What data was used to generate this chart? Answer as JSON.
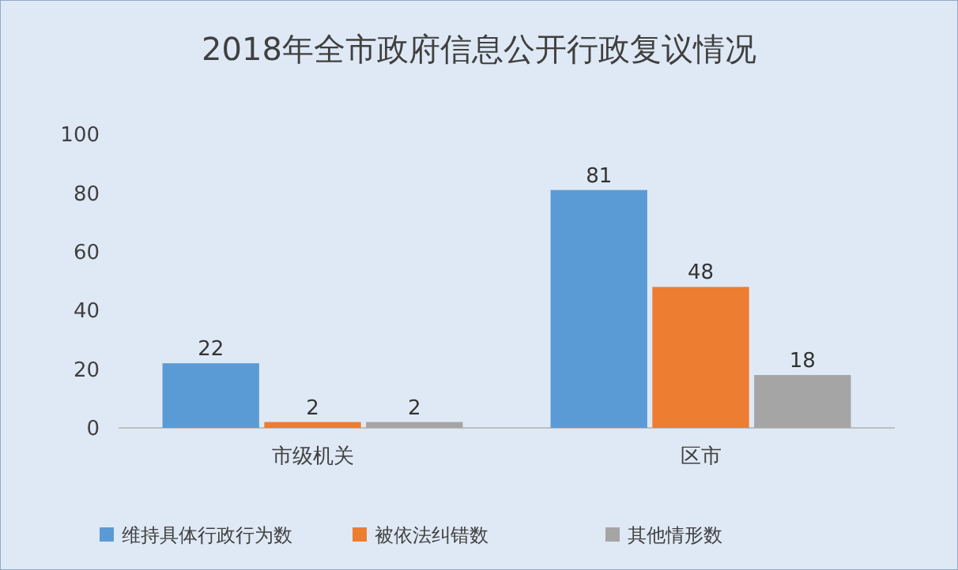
{
  "chart_data": {
    "type": "bar",
    "title": "2018年全市政府信息公开行政复议情况",
    "categories": [
      "市级机关",
      "区市"
    ],
    "series": [
      {
        "name": "维持具体行政行为数",
        "color": "#5b9bd5",
        "values": [
          22,
          81
        ]
      },
      {
        "name": "被依法纠错数",
        "color": "#ed7d31",
        "values": [
          2,
          48
        ]
      },
      {
        "name": "其他情形数",
        "color": "#a5a5a5",
        "values": [
          2,
          18
        ]
      }
    ],
    "ylim": [
      0,
      100
    ],
    "yticks": [
      0,
      20,
      40,
      60,
      80,
      100
    ],
    "grid": false,
    "legend": "bottom",
    "data_labels": true
  }
}
